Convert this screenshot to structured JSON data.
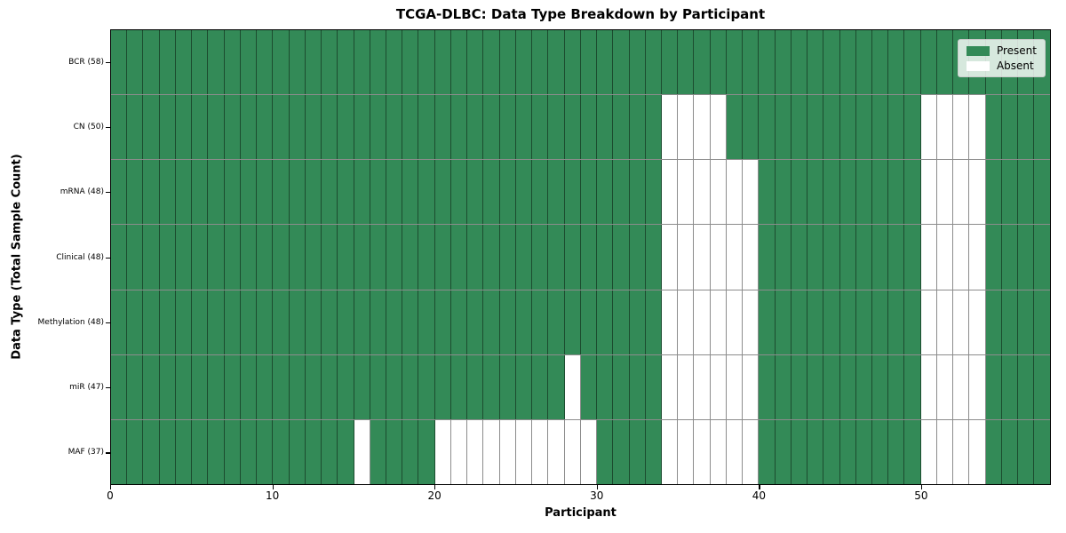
{
  "title": "TCGA-DLBC: Data Type Breakdown by Participant",
  "legend": {
    "present_label": "Present",
    "absent_label": "Absent"
  },
  "colors": {
    "present": "#338a57",
    "absent": "#ffffff",
    "grid_line": "rgba(0,0,0,0.45)",
    "frame": "#000000",
    "legend_background": "rgba(255,255,255,0.8)"
  },
  "chart_data": {
    "type": "heatmap",
    "title": "TCGA-DLBC: Data Type Breakdown by Participant",
    "xlabel": "Participant",
    "ylabel": "Data Type (Total Sample Count)",
    "x_ticks": [
      0,
      10,
      20,
      30,
      40,
      50
    ],
    "x_range": [
      0,
      58
    ],
    "n_participants": 58,
    "grid": true,
    "legend_position": "upper right",
    "legend_entries": [
      {
        "label": "Present",
        "color": "#338a57"
      },
      {
        "label": "Absent",
        "color": "#ffffff"
      }
    ],
    "rows": [
      {
        "data_type": "BCR",
        "label": "BCR (58)",
        "present_count": 58,
        "absent_participants": []
      },
      {
        "data_type": "CN",
        "label": "CN (50)",
        "present_count": 50,
        "absent_participants": [
          34,
          35,
          36,
          37,
          50,
          51,
          52,
          53
        ]
      },
      {
        "data_type": "mRNA",
        "label": "mRNA (48)",
        "present_count": 48,
        "absent_participants": [
          34,
          35,
          36,
          37,
          38,
          39,
          50,
          51,
          52,
          53
        ]
      },
      {
        "data_type": "Clinical",
        "label": "Clinical (48)",
        "present_count": 48,
        "absent_participants": [
          34,
          35,
          36,
          37,
          38,
          39,
          50,
          51,
          52,
          53
        ]
      },
      {
        "data_type": "Methylation",
        "label": "Methylation (48)",
        "present_count": 48,
        "absent_participants": [
          34,
          35,
          36,
          37,
          38,
          39,
          50,
          51,
          52,
          53
        ]
      },
      {
        "data_type": "miR",
        "label": "miR (47)",
        "present_count": 47,
        "absent_participants": [
          28,
          34,
          35,
          36,
          37,
          38,
          39,
          50,
          51,
          52,
          53
        ]
      },
      {
        "data_type": "MAF",
        "label": "MAF (37)",
        "present_count": 37,
        "absent_participants": [
          15,
          20,
          21,
          22,
          23,
          24,
          25,
          26,
          27,
          28,
          29,
          34,
          35,
          36,
          37,
          38,
          39,
          50,
          51,
          52,
          53
        ]
      }
    ]
  }
}
